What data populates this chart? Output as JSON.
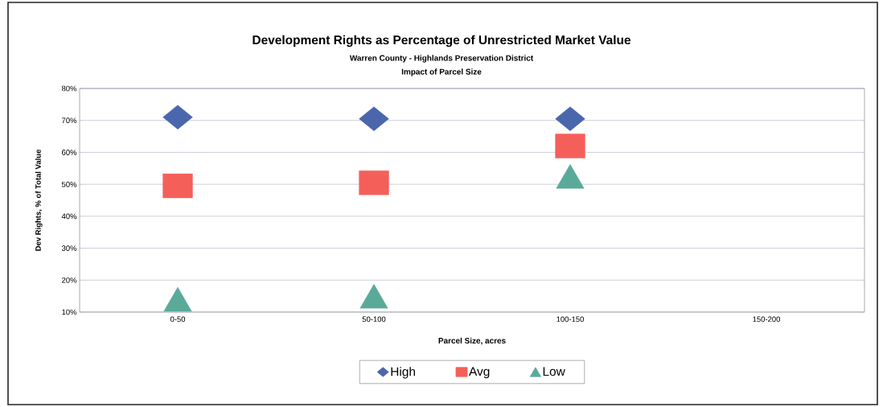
{
  "chart_data": {
    "type": "scatter",
    "title": "Development Rights as Percentage of Unrestricted Market Value",
    "subtitle": "Warren County - Highlands Preservation District",
    "annotations": [
      "Impact of Parcel Size"
    ],
    "xlabel": "Parcel Size, acres",
    "ylabel": "Dev Rights, % of Total Value",
    "categories": [
      "0-50",
      "50-100",
      "100-150",
      "150-200"
    ],
    "series": [
      {
        "name": "High",
        "color": "#4a66ac",
        "marker": "diamond",
        "values": [
          71,
          70.5,
          70.5,
          null
        ]
      },
      {
        "name": "Avg",
        "color": "#f55f5a",
        "marker": "square",
        "values": [
          49.5,
          50.5,
          62,
          null
        ]
      },
      {
        "name": "Low",
        "color": "#5aaa9a",
        "marker": "triangle",
        "values": [
          14,
          15,
          52.5,
          null
        ]
      }
    ],
    "ylim": [
      10,
      80
    ],
    "yticks": [
      {
        "value": 10,
        "label": "10%"
      },
      {
        "value": 20,
        "label": "20%"
      },
      {
        "value": 30,
        "label": "30%"
      },
      {
        "value": 40,
        "label": "40%"
      },
      {
        "value": 50,
        "label": "50%"
      },
      {
        "value": 60,
        "label": "60%"
      },
      {
        "value": 70,
        "label": "70%"
      },
      {
        "value": 80,
        "label": "80%"
      }
    ],
    "grid": "y",
    "legend": "bottom"
  }
}
